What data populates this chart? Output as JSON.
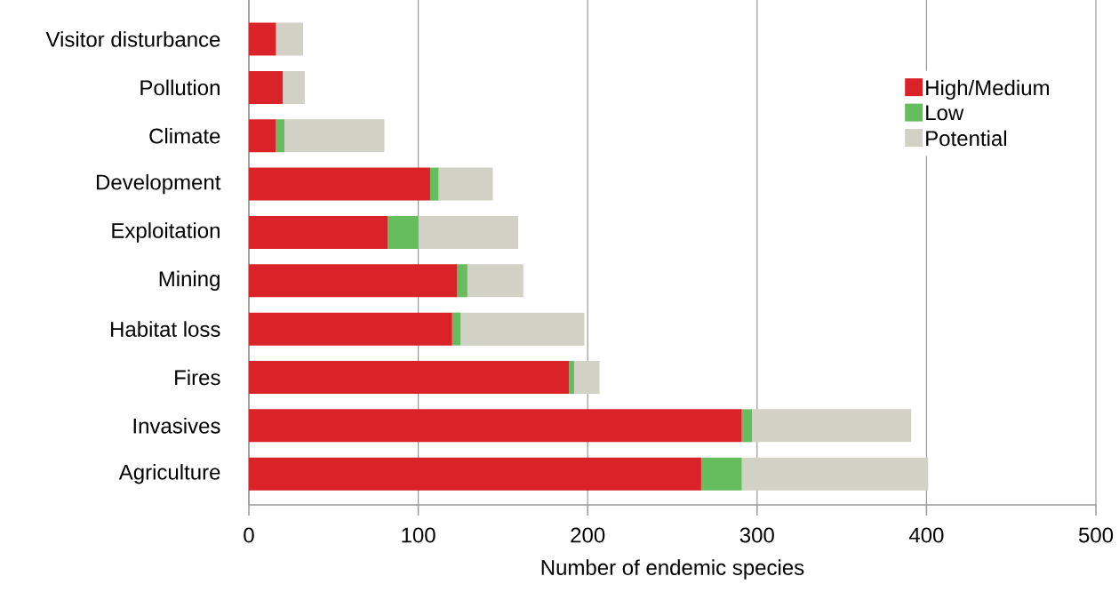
{
  "chart_data": {
    "type": "bar",
    "orientation": "horizontal",
    "stacked": true,
    "xlabel": "Number of endemic species",
    "categories": [
      "Visitor disturbance",
      "Pollution",
      "Climate",
      "Development",
      "Exploitation",
      "Mining",
      "Habitat loss",
      "Fires",
      "Invasives",
      "Agriculture"
    ],
    "series": [
      {
        "name": "High/Medium",
        "color": "#da2328",
        "values": [
          16,
          20,
          16,
          107,
          82,
          123,
          120,
          189,
          291,
          267
        ]
      },
      {
        "name": "Low",
        "color": "#66bd5d",
        "values": [
          0,
          0,
          5,
          5,
          18,
          6,
          5,
          3,
          6,
          24
        ]
      },
      {
        "name": "Potential",
        "color": "#d1d1c5",
        "values": [
          16,
          13,
          59,
          32,
          59,
          33,
          73,
          15,
          94,
          110
        ]
      }
    ],
    "xlim": [
      0,
      500
    ],
    "xticks": [
      0,
      100,
      200,
      300,
      400,
      500
    ],
    "grid": "x",
    "legend": "top right"
  }
}
